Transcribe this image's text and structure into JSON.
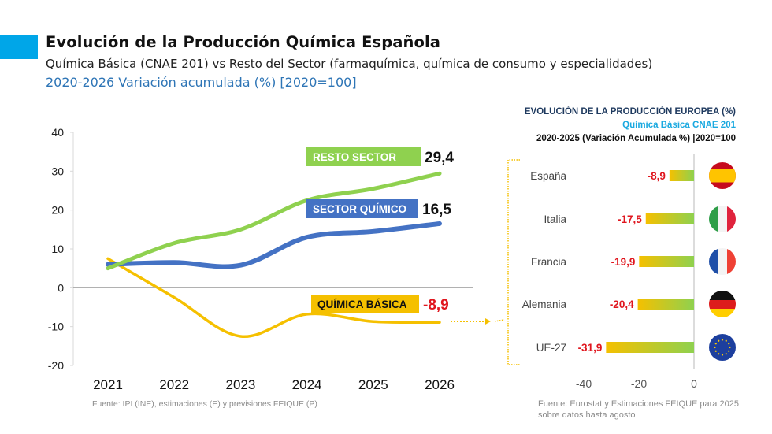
{
  "header": {
    "title": "Evolución de la Producción Química Española",
    "subtitle": "Química Básica (CNAE 201) vs Resto del Sector (farmaquímica, química de consumo y especialidades)",
    "subtitle2": "2020-2026 Variación acumulada (%) [2020=100]",
    "accent_color": "#00a6e8"
  },
  "europe_header": {
    "line1": "EVOLUCIÓN DE LA PRODUCCIÓN EUROPEA (%)",
    "line2": "Química Básica CNAE 201",
    "line3": "2020-2025 (Variación Acumulada %) |2020=100"
  },
  "chart_data": [
    {
      "type": "line",
      "title": "Evolución de la Producción Química Española",
      "xlabel": "",
      "ylabel": "",
      "x": [
        "2021",
        "2022",
        "2023",
        "2024",
        "2025",
        "2026"
      ],
      "ylim": [
        -20,
        40
      ],
      "yticks": [
        "40",
        "30",
        "20",
        "10",
        "0",
        "-10",
        "-20"
      ],
      "ytick_values": [
        40,
        30,
        20,
        10,
        0,
        -10,
        -20
      ],
      "grid": false,
      "series": [
        {
          "name": "RESTO SECTOR",
          "color": "#8fd14f",
          "label_text_color": "#ffffff",
          "end_label": "29,4",
          "end_label_color": "#111111",
          "values": [
            5.0,
            11.5,
            15.0,
            22.5,
            25.5,
            29.4
          ]
        },
        {
          "name": "SECTOR QUÍMICO",
          "color": "#4472c4",
          "label_text_color": "#ffffff",
          "end_label": "16,5",
          "end_label_color": "#111111",
          "values": [
            6.0,
            6.5,
            5.8,
            13.0,
            14.5,
            16.5
          ]
        },
        {
          "name": "QUÍMICA BÁSICA",
          "color": "#f5c000",
          "label_text_color": "#111111",
          "end_label": "-8,9",
          "end_label_color": "#e0161e",
          "values": [
            7.5,
            -2.5,
            -12.5,
            -6.8,
            -8.7,
            -8.9
          ]
        }
      ],
      "source": "Fuente: IPI (INE), estimaciones (E) y previsiones FEIQUE (P)"
    },
    {
      "type": "bar",
      "orientation": "horizontal",
      "title": "EVOLUCIÓN DE LA PRODUCCIÓN EUROPEA (%)",
      "categories": [
        "España",
        "Italia",
        "Francia",
        "Alemania",
        "UE-27"
      ],
      "values": [
        -8.9,
        -17.5,
        -19.9,
        -20.4,
        -31.9
      ],
      "value_labels": [
        "-8,9",
        "-17,5",
        "-19,9",
        "-20,4",
        "-31,9"
      ],
      "flags": [
        "spain-flag-icon",
        "italy-flag-icon",
        "france-flag-icon",
        "germany-flag-icon",
        "eu-flag-icon"
      ],
      "xlim": [
        -40,
        0
      ],
      "xticks": [
        "-40",
        "-20",
        "0"
      ],
      "xtick_values": [
        -40,
        -20,
        0
      ],
      "gradient": [
        "#f5c000",
        "#8fd14f"
      ],
      "value_label_color": "#e0161e",
      "source": "Fuente: Eurostat y Estimaciones FEIQUE para 2025 sobre datos hasta agosto"
    }
  ]
}
